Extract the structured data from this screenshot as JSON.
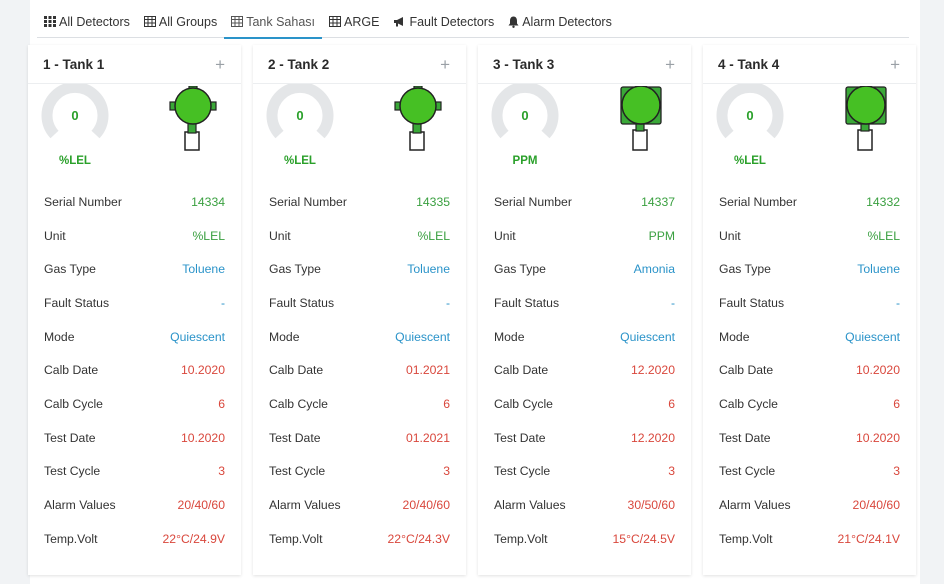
{
  "tabs": [
    {
      "label": "All Detectors",
      "icon": "grid-icon"
    },
    {
      "label": "All Groups",
      "icon": "table-icon"
    },
    {
      "label": "Tank Sahası",
      "icon": "table-icon",
      "active": true
    },
    {
      "label": "ARGE",
      "icon": "table-icon"
    },
    {
      "label": "Fault Detectors",
      "icon": "bullhorn-icon"
    },
    {
      "label": "Alarm Detectors",
      "icon": "bell-icon"
    }
  ],
  "row_labels": {
    "serial": "Serial Number",
    "unit": "Unit",
    "gas": "Gas Type",
    "fault": "Fault Status",
    "mode": "Mode",
    "calb_date": "Calb Date",
    "calb_cycle": "Calb Cycle",
    "test_date": "Test Date",
    "test_cycle": "Test Cycle",
    "alarm": "Alarm Values",
    "temp": "Temp.Volt"
  },
  "colors": {
    "green": "#3aa040",
    "blue": "#2a93c9",
    "red": "#d9473c",
    "accent": "#2a93c9"
  },
  "cards": [
    {
      "title": "1 - Tank 1",
      "plus": "+",
      "gauge_value": "0",
      "gauge_unit": "%LEL",
      "sensor_shape": "round",
      "serial": "14334",
      "unit": "%LEL",
      "gas": "Toluene",
      "fault": "-",
      "mode": "Quiescent",
      "calb_date": "10.2020",
      "calb_cycle": "6",
      "test_date": "10.2020",
      "test_cycle": "3",
      "alarm": "20/40/60",
      "temp": "22°C/24.9V"
    },
    {
      "title": "2 - Tank 2",
      "plus": "+",
      "gauge_value": "0",
      "gauge_unit": "%LEL",
      "sensor_shape": "round",
      "serial": "14335",
      "unit": "%LEL",
      "gas": "Toluene",
      "fault": "-",
      "mode": "Quiescent",
      "calb_date": "01.2021",
      "calb_cycle": "6",
      "test_date": "01.2021",
      "test_cycle": "3",
      "alarm": "20/40/60",
      "temp": "22°C/24.3V"
    },
    {
      "title": "3 - Tank 3",
      "plus": "+",
      "gauge_value": "0",
      "gauge_unit": "PPM",
      "sensor_shape": "square",
      "serial": "14337",
      "unit": "PPM",
      "gas": "Amonia",
      "fault": "-",
      "mode": "Quiescent",
      "calb_date": "12.2020",
      "calb_cycle": "6",
      "test_date": "12.2020",
      "test_cycle": "3",
      "alarm": "30/50/60",
      "temp": "15°C/24.5V"
    },
    {
      "title": "4 - Tank 4",
      "plus": "+",
      "gauge_value": "0",
      "gauge_unit": "%LEL",
      "sensor_shape": "square",
      "serial": "14332",
      "unit": "%LEL",
      "gas": "Toluene",
      "fault": "-",
      "mode": "Quiescent",
      "calb_date": "10.2020",
      "calb_cycle": "6",
      "test_date": "10.2020",
      "test_cycle": "3",
      "alarm": "20/40/60",
      "temp": "21°C/24.1V"
    }
  ]
}
